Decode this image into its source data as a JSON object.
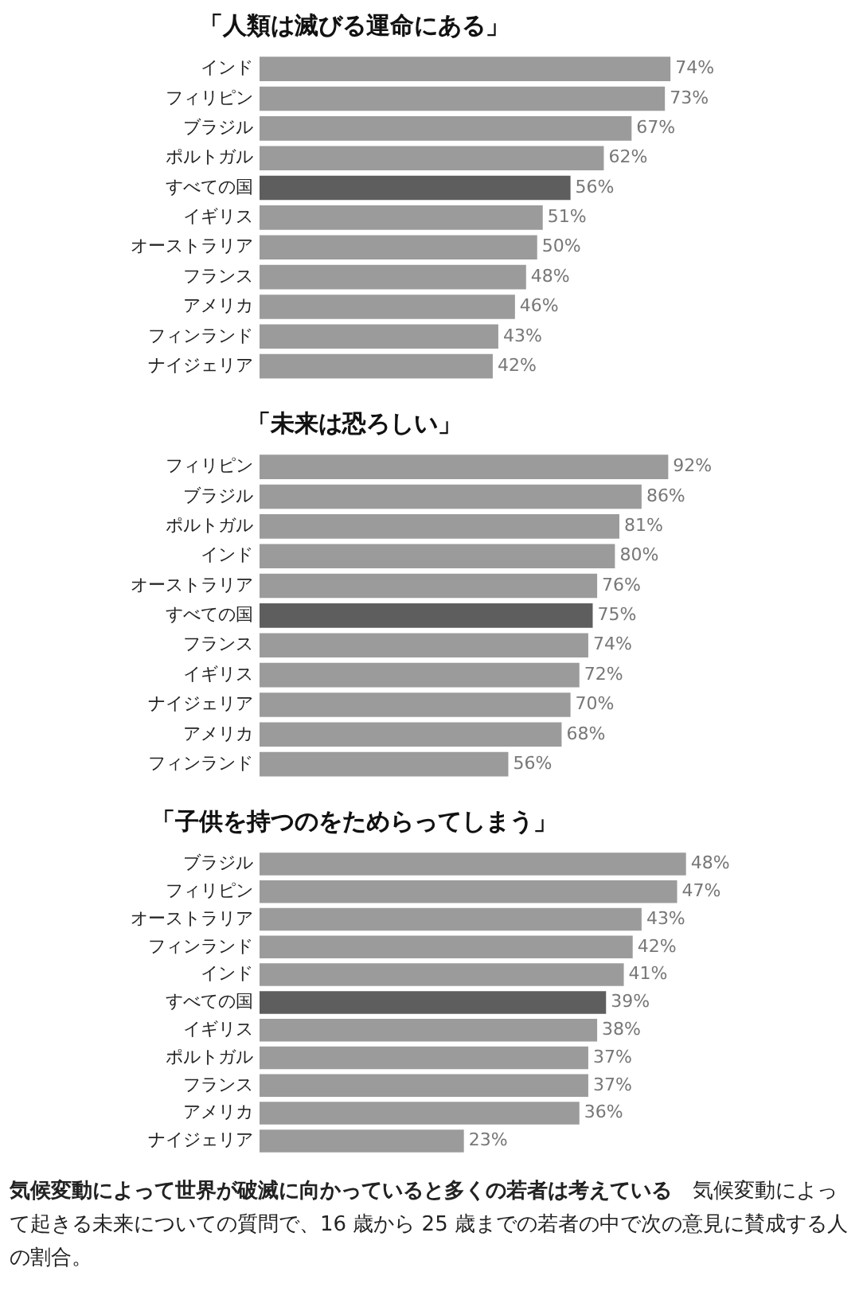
{
  "chart_data": [
    {
      "type": "bar",
      "orientation": "horizontal",
      "title": "「人類は滅びる運命にある」",
      "categories": [
        "インド",
        "フィリピン",
        "ブラジル",
        "ポルトガル",
        "すべての国",
        "イギリス",
        "オーストラリア",
        "フランス",
        "アメリカ",
        "フィンランド",
        "ナイジェリア"
      ],
      "values": [
        74,
        73,
        67,
        62,
        56,
        51,
        50,
        48,
        46,
        43,
        42
      ],
      "colors": [
        "#9b9b9b",
        "#9b9b9b",
        "#9b9b9b",
        "#9b9b9b",
        "#5e5e5e",
        "#9b9b9b",
        "#9b9b9b",
        "#9b9b9b",
        "#9b9b9b",
        "#9b9b9b",
        "#9b9b9b"
      ],
      "value_labels": [
        "74%",
        "73%",
        "67%",
        "62%",
        "56%",
        "51%",
        "50%",
        "48%",
        "46%",
        "43%",
        "42%"
      ],
      "tick_labels": "y",
      "grid": false,
      "legend": false
    },
    {
      "type": "bar",
      "orientation": "horizontal",
      "title": "「未来は恐ろしい」",
      "categories": [
        "フィリピン",
        "ブラジル",
        "ポルトガル",
        "インド",
        "オーストラリア",
        "すべての国",
        "フランス",
        "イギリス",
        "ナイジェリア",
        "アメリカ",
        "フィンランド"
      ],
      "values": [
        92,
        86,
        81,
        80,
        76,
        75,
        74,
        72,
        70,
        68,
        56
      ],
      "colors": [
        "#9b9b9b",
        "#9b9b9b",
        "#9b9b9b",
        "#9b9b9b",
        "#9b9b9b",
        "#5e5e5e",
        "#9b9b9b",
        "#9b9b9b",
        "#9b9b9b",
        "#9b9b9b",
        "#9b9b9b"
      ],
      "value_labels": [
        "92%",
        "86%",
        "81%",
        "80%",
        "76%",
        "75%",
        "74%",
        "72%",
        "70%",
        "68%",
        "56%"
      ],
      "tick_labels": "y",
      "grid": false,
      "legend": false
    },
    {
      "type": "bar",
      "orientation": "horizontal",
      "title": "「子供を持つのをためらってしまう」",
      "categories": [
        "ブラジル",
        "フィリピン",
        "オーストラリア",
        "フィンランド",
        "インド",
        "すべての国",
        "イギリス",
        "ポルトガル",
        "フランス",
        "アメリカ",
        "ナイジェリア"
      ],
      "values": [
        48,
        47,
        43,
        42,
        41,
        39,
        38,
        37,
        37,
        36,
        23
      ],
      "colors": [
        "#9b9b9b",
        "#9b9b9b",
        "#9b9b9b",
        "#9b9b9b",
        "#9b9b9b",
        "#5e5e5e",
        "#9b9b9b",
        "#9b9b9b",
        "#9b9b9b",
        "#9b9b9b",
        "#9b9b9b"
      ],
      "value_labels": [
        "48%",
        "47%",
        "43%",
        "42%",
        "41%",
        "39%",
        "38%",
        "37%",
        "37%",
        "36%",
        "23%"
      ],
      "tick_labels": "y",
      "grid": false,
      "legend": false,
      "annotations": [
        "気候変動によって世界が破滅に向かっていると多くの若者は考えている",
        "気候変動によって起きる未来についての質問で、16 歳から 25 歳までの若者の中で次の意見に賛成する人の割合。"
      ]
    }
  ]
}
